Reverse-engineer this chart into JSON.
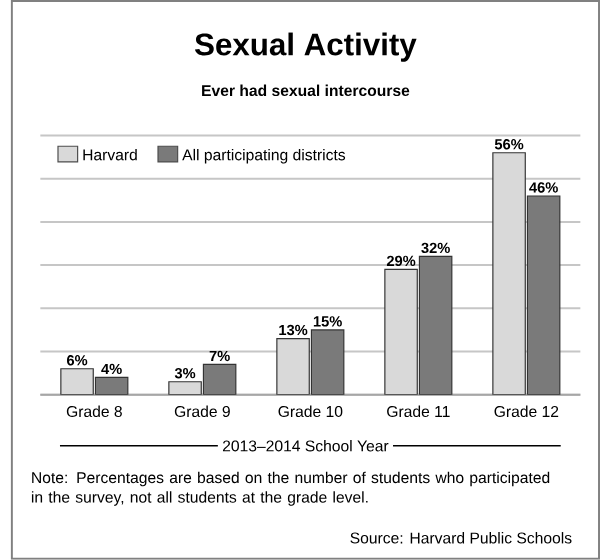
{
  "chart_data": {
    "type": "bar",
    "title": "Sexual Activity",
    "subtitle": "Ever had sexual intercourse",
    "xlabel": "2013–2014 School Year",
    "categories": [
      "Grade 8",
      "Grade 9",
      "Grade 10",
      "Grade 11",
      "Grade 12"
    ],
    "series": [
      {
        "name": "Harvard",
        "color": "#d9d9d9",
        "values": [
          6,
          3,
          13,
          29,
          56
        ],
        "value_labels": [
          "6%",
          "3%",
          "13%",
          "29%",
          "56%"
        ]
      },
      {
        "name": "All participating districts",
        "color": "#7a7a7a",
        "values": [
          4,
          7,
          15,
          32,
          46
        ],
        "value_labels": [
          "4%",
          "7%",
          "15%",
          "32%",
          "46%"
        ]
      }
    ],
    "ylim": [
      0,
      60
    ],
    "yticks": [
      {
        "value": 0,
        "label": null
      },
      {
        "value": 10,
        "label": null
      },
      {
        "value": 20,
        "label": null
      },
      {
        "value": 30,
        "label": null
      },
      {
        "value": 40,
        "label": null
      },
      {
        "value": 50,
        "label": null
      },
      {
        "value": 60,
        "label": null
      }
    ],
    "tick_labels": "x",
    "grid": "y",
    "legend": "top left",
    "annotations": [
      "Note: Percentages are based on the number of students who participated in the survey, not all students at the grade level.",
      "Source: Harvard Public Schools"
    ]
  }
}
